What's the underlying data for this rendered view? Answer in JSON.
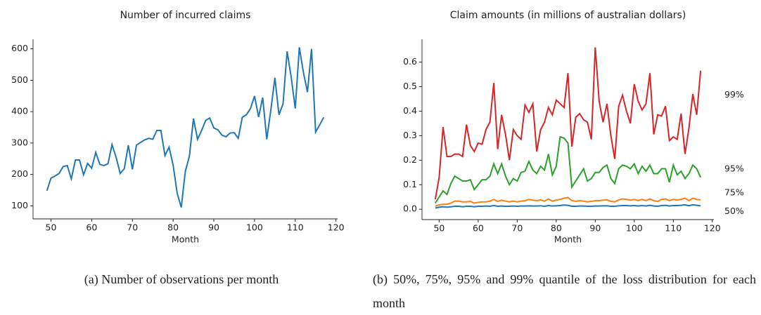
{
  "chart_data": [
    {
      "type": "line",
      "title": "Number of incurred claims",
      "xlabel": "Month",
      "x": [
        49,
        50,
        51,
        52,
        53,
        54,
        55,
        56,
        57,
        58,
        59,
        60,
        61,
        62,
        63,
        64,
        65,
        66,
        67,
        68,
        69,
        70,
        71,
        72,
        73,
        74,
        75,
        76,
        77,
        78,
        79,
        80,
        81,
        82,
        83,
        84,
        85,
        86,
        87,
        88,
        89,
        90,
        91,
        92,
        93,
        94,
        95,
        96,
        97,
        98,
        99,
        100,
        101,
        102,
        103,
        104,
        105,
        106,
        107,
        108,
        109,
        110,
        111,
        112,
        113,
        114,
        115,
        116,
        117
      ],
      "values": [
        148,
        188,
        195,
        203,
        225,
        228,
        186,
        246,
        246,
        199,
        235,
        220,
        270,
        232,
        228,
        234,
        295,
        255,
        203,
        218,
        293,
        216,
        293,
        302,
        310,
        315,
        312,
        340,
        340,
        260,
        287,
        230,
        140,
        95,
        210,
        258,
        378,
        312,
        340,
        372,
        380,
        348,
        342,
        325,
        320,
        332,
        333,
        315,
        382,
        390,
        410,
        450,
        383,
        445,
        312,
        405,
        508,
        390,
        425,
        592,
        510,
        410,
        605,
        525,
        462,
        600,
        335,
        358,
        382
      ],
      "color": "#1f77b4",
      "xlim": [
        45.6,
        120.4
      ],
      "xticks": [
        50,
        60,
        70,
        80,
        90,
        100,
        110,
        120
      ],
      "ylim": [
        69.5,
        630.5
      ],
      "yticks": [
        100,
        200,
        300,
        400,
        500,
        600
      ]
    },
    {
      "type": "line",
      "title": "Claim amounts (in millions of australian dollars)",
      "xlabel": "Month",
      "x": [
        49,
        50,
        51,
        52,
        53,
        54,
        55,
        56,
        57,
        58,
        59,
        60,
        61,
        62,
        63,
        64,
        65,
        66,
        67,
        68,
        69,
        70,
        71,
        72,
        73,
        74,
        75,
        76,
        77,
        78,
        79,
        80,
        81,
        82,
        83,
        84,
        85,
        86,
        87,
        88,
        89,
        90,
        91,
        92,
        93,
        94,
        95,
        96,
        97,
        98,
        99,
        100,
        101,
        102,
        103,
        104,
        105,
        106,
        107,
        108,
        109,
        110,
        111,
        112,
        113,
        114,
        115,
        116,
        117
      ],
      "series": [
        {
          "name": "50%",
          "color": "#1f77b4",
          "values": [
            0.005,
            0.008,
            0.01,
            0.008,
            0.01,
            0.012,
            0.012,
            0.01,
            0.012,
            0.012,
            0.01,
            0.012,
            0.012,
            0.013,
            0.012,
            0.015,
            0.012,
            0.013,
            0.012,
            0.012,
            0.013,
            0.012,
            0.013,
            0.013,
            0.014,
            0.013,
            0.013,
            0.014,
            0.012,
            0.015,
            0.013,
            0.014,
            0.015,
            0.017,
            0.016,
            0.012,
            0.012,
            0.013,
            0.013,
            0.012,
            0.012,
            0.013,
            0.013,
            0.014,
            0.014,
            0.012,
            0.012,
            0.014,
            0.015,
            0.015,
            0.014,
            0.015,
            0.013,
            0.015,
            0.013,
            0.016,
            0.013,
            0.012,
            0.015,
            0.016,
            0.013,
            0.015,
            0.015,
            0.016,
            0.018,
            0.014,
            0.018,
            0.016,
            0.014
          ]
        },
        {
          "name": "75%",
          "color": "#ff7f0e",
          "values": [
            0.012,
            0.018,
            0.02,
            0.02,
            0.025,
            0.033,
            0.033,
            0.03,
            0.03,
            0.032,
            0.025,
            0.028,
            0.03,
            0.03,
            0.033,
            0.04,
            0.032,
            0.037,
            0.033,
            0.03,
            0.033,
            0.03,
            0.033,
            0.035,
            0.04,
            0.037,
            0.035,
            0.038,
            0.033,
            0.042,
            0.033,
            0.037,
            0.04,
            0.045,
            0.048,
            0.035,
            0.032,
            0.035,
            0.033,
            0.03,
            0.032,
            0.035,
            0.035,
            0.037,
            0.038,
            0.032,
            0.03,
            0.038,
            0.042,
            0.04,
            0.037,
            0.04,
            0.035,
            0.04,
            0.035,
            0.042,
            0.035,
            0.032,
            0.04,
            0.042,
            0.035,
            0.04,
            0.038,
            0.04,
            0.045,
            0.035,
            0.045,
            0.04,
            0.038
          ]
        },
        {
          "name": "95%",
          "color": "#2ca02c",
          "values": [
            0.025,
            0.05,
            0.075,
            0.06,
            0.105,
            0.135,
            0.125,
            0.115,
            0.115,
            0.12,
            0.08,
            0.1,
            0.12,
            0.12,
            0.135,
            0.185,
            0.145,
            0.185,
            0.135,
            0.1,
            0.125,
            0.115,
            0.15,
            0.155,
            0.195,
            0.16,
            0.145,
            0.175,
            0.16,
            0.225,
            0.14,
            0.175,
            0.295,
            0.29,
            0.27,
            0.09,
            0.115,
            0.14,
            0.165,
            0.115,
            0.125,
            0.15,
            0.15,
            0.17,
            0.18,
            0.125,
            0.105,
            0.165,
            0.18,
            0.175,
            0.165,
            0.185,
            0.145,
            0.175,
            0.155,
            0.18,
            0.145,
            0.145,
            0.165,
            0.165,
            0.11,
            0.18,
            0.14,
            0.155,
            0.125,
            0.145,
            0.18,
            0.165,
            0.13
          ]
        },
        {
          "name": "99%",
          "color": "#d62728",
          "values": [
            0.04,
            0.13,
            0.335,
            0.215,
            0.215,
            0.225,
            0.225,
            0.215,
            0.345,
            0.26,
            0.235,
            0.27,
            0.265,
            0.325,
            0.355,
            0.515,
            0.245,
            0.385,
            0.305,
            0.2,
            0.325,
            0.3,
            0.285,
            0.425,
            0.395,
            0.43,
            0.235,
            0.325,
            0.355,
            0.415,
            0.385,
            0.445,
            0.43,
            0.415,
            0.555,
            0.255,
            0.375,
            0.39,
            0.365,
            0.355,
            0.285,
            0.66,
            0.44,
            0.355,
            0.43,
            0.3,
            0.205,
            0.42,
            0.465,
            0.4,
            0.35,
            0.51,
            0.44,
            0.405,
            0.43,
            0.555,
            0.305,
            0.385,
            0.38,
            0.42,
            0.28,
            0.295,
            0.285,
            0.39,
            0.225,
            0.33,
            0.47,
            0.385,
            0.565
          ]
        }
      ],
      "xlim": [
        45.6,
        120.4
      ],
      "xticks": [
        50,
        60,
        70,
        80,
        90,
        100,
        110,
        120
      ],
      "ylim": [
        -0.028,
        0.693
      ],
      "yticks": [
        {
          "value": 0,
          "label": "0.0"
        },
        0.1,
        0.2,
        0.3,
        0.4,
        0.5,
        0.6
      ]
    }
  ],
  "captions": [
    "(a) Number of observations per month",
    "(b) 50%, 75%, 95% and 99% quantile of the loss distribution for each month"
  ]
}
